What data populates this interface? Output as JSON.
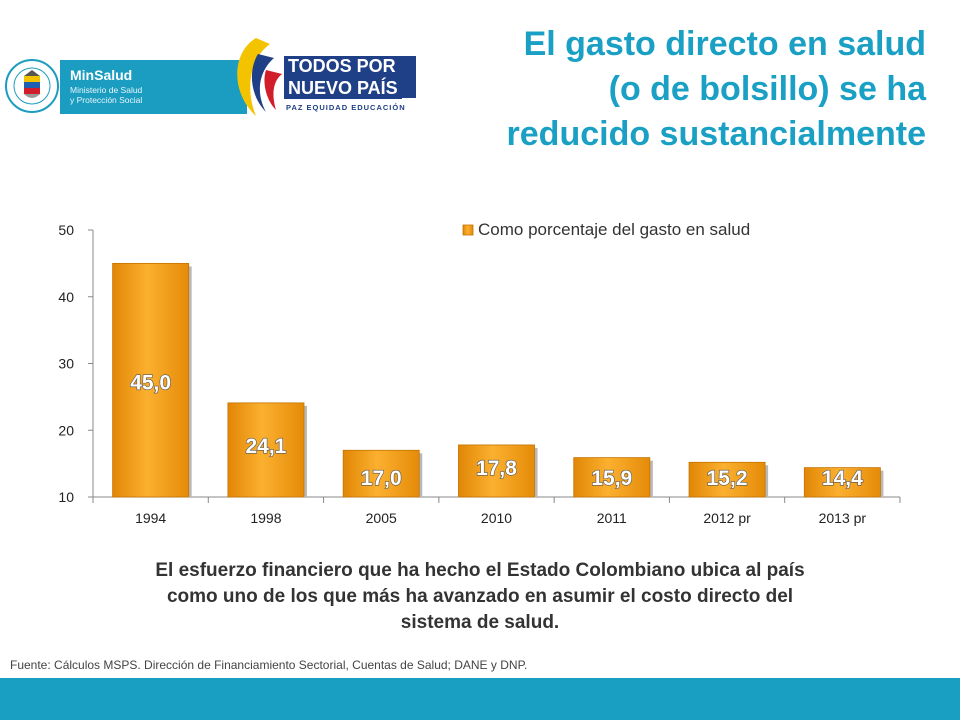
{
  "header": {
    "title_lines": [
      "El gasto directo en salud",
      "(o de bolsillo) se ha",
      "reducido sustancialmente"
    ]
  },
  "logos": {
    "seal_text": "REPÚBLICA DE COLOMBIA",
    "minsalud_name": "MinSalud",
    "minsalud_line1": "Ministerio de Salud",
    "minsalud_line2": "y Protección Social",
    "slogan_line1": "TODOS POR UN",
    "slogan_line2": "NUEVO PAÍS",
    "slogan_line3": "PAZ  EQUIDAD  EDUCACIÓN"
  },
  "chart_data": {
    "type": "bar",
    "categories": [
      "1994",
      "1998",
      "2005",
      "2010",
      "2011",
      "2012 pr",
      "2013 pr"
    ],
    "series": [
      {
        "name": "Como porcentaje del gasto en salud",
        "values": [
          45.0,
          24.1,
          17.0,
          17.8,
          15.9,
          15.2,
          14.4
        ]
      }
    ],
    "data_labels": [
      "45,0",
      "24,1",
      "17,0",
      "17,8",
      "15,9",
      "15,2",
      "14,4"
    ],
    "y_ticks": [
      "10",
      "20",
      "30",
      "40",
      "50"
    ],
    "ylim": [
      10,
      50
    ],
    "legend_position": "top-right",
    "grid": false,
    "bar_color": "#f59c12"
  },
  "caption_lines": [
    "El esfuerzo financiero que ha hecho el Estado Colombiano ubica al país",
    "como uno de los que más ha avanzado en asumir el costo directo del",
    "sistema de salud."
  ],
  "source": "Fuente: Cálculos MSPS. Dirección de Financiamiento Sectorial, Cuentas de Salud; DANE y DNP.",
  "colors": {
    "accent": "#1aa0c4",
    "footer": "#199fc2",
    "bar": "#f59c12",
    "slogan": "#1f3f86"
  }
}
